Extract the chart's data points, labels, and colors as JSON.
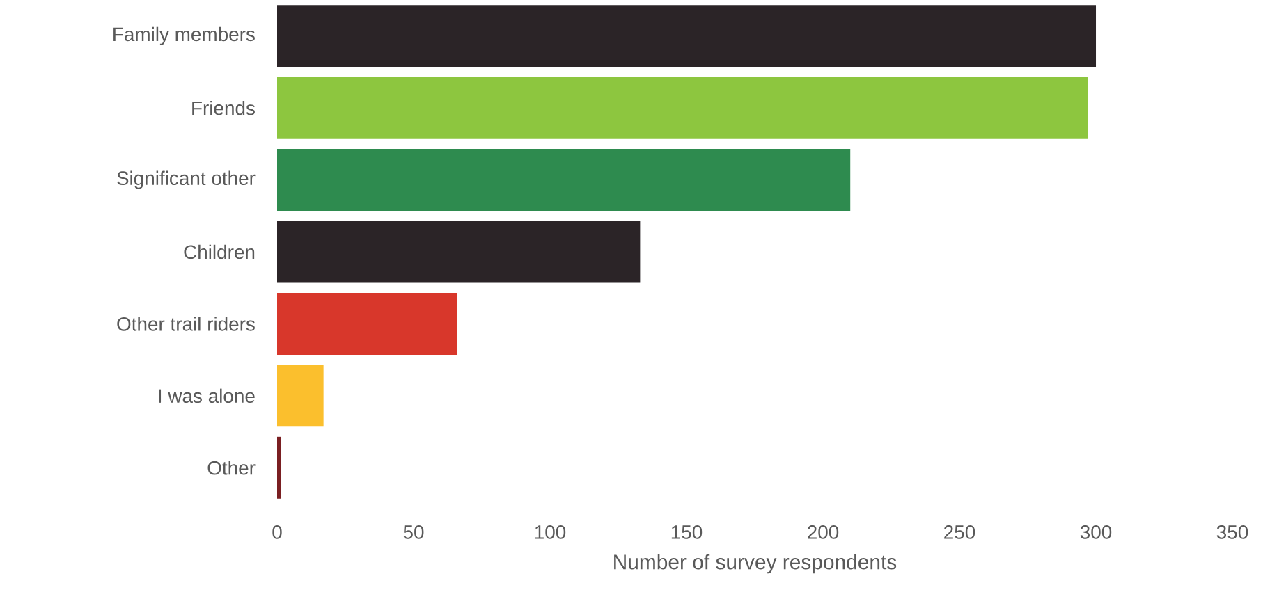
{
  "chart_data": {
    "type": "bar",
    "orientation": "horizontal",
    "xlabel": "Number of survey respondents",
    "categories": [
      "Family members",
      "Friends",
      "Significant other",
      "Children",
      "Other trail riders",
      "I was alone",
      "Other"
    ],
    "values": [
      300,
      297,
      210,
      133,
      66,
      17,
      1.5
    ],
    "colors": [
      "#2b2427",
      "#8dc63f",
      "#2e8b4f",
      "#2b2427",
      "#d8372b",
      "#fbbf2d",
      "#7a1f22"
    ],
    "xlim": [
      0,
      350
    ],
    "xticks": [
      0,
      50,
      100,
      150,
      200,
      250,
      300,
      350
    ]
  }
}
